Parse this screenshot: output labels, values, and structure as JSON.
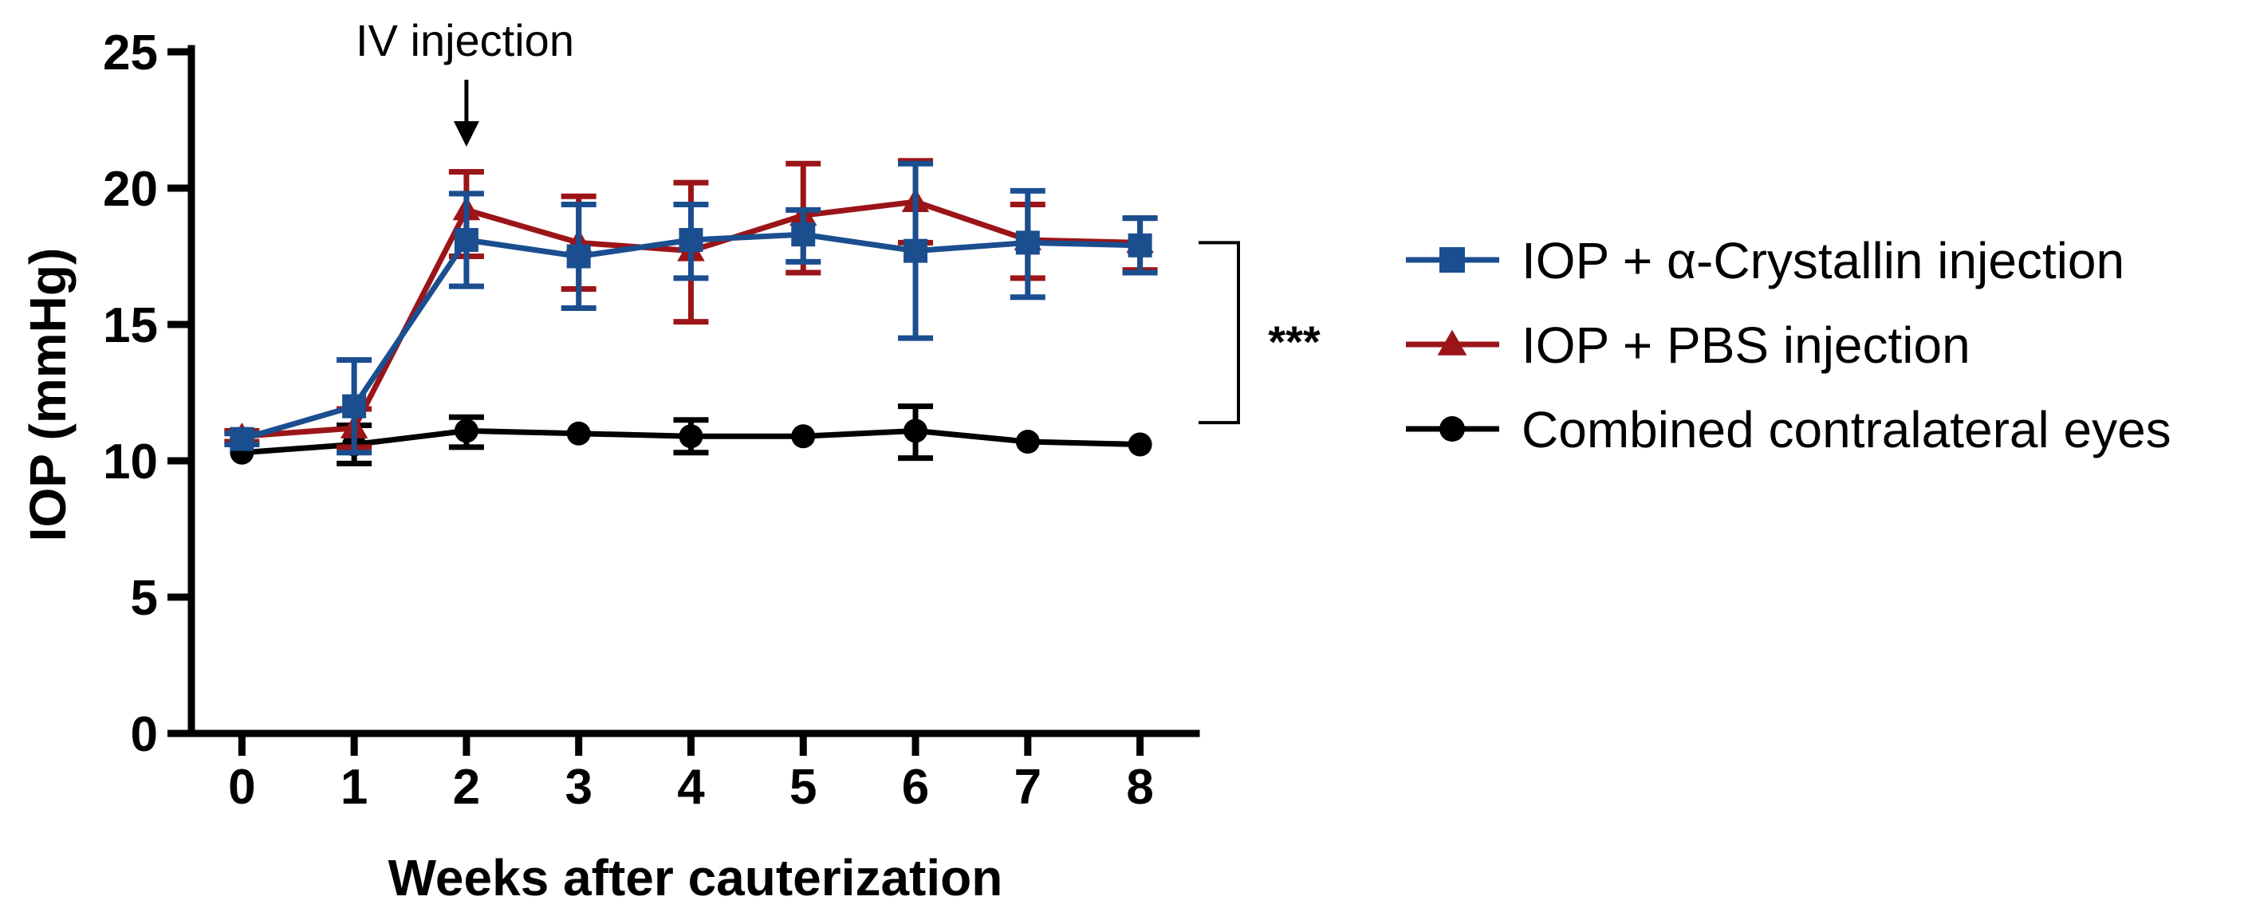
{
  "chart_data": {
    "type": "line",
    "title": "",
    "xlabel": "Weeks after cauterization",
    "ylabel": "IOP (mmHg)",
    "x": [
      0,
      1,
      2,
      3,
      4,
      5,
      6,
      7,
      8
    ],
    "x_ticks": [
      "0",
      "1",
      "2",
      "3",
      "4",
      "5",
      "6",
      "7",
      "8"
    ],
    "y_ticks": [
      "0",
      "5",
      "10",
      "15",
      "20",
      "25"
    ],
    "xlim": [
      -0.45,
      8.5
    ],
    "ylim": [
      0,
      25
    ],
    "grid": false,
    "legend_position": "right",
    "series": [
      {
        "name": "IOP + α-Crystallin injection",
        "color": "#1a4e8f",
        "marker": "square",
        "values": [
          10.8,
          12.0,
          18.1,
          17.5,
          18.1,
          18.3,
          17.7,
          18.0,
          17.9
        ],
        "err_low": [
          10.6,
          10.3,
          16.4,
          15.6,
          16.7,
          17.3,
          14.5,
          16.0,
          16.9
        ],
        "err_high": [
          11.0,
          13.7,
          19.8,
          19.4,
          19.4,
          19.2,
          20.9,
          19.9,
          18.9
        ]
      },
      {
        "name": "IOP + PBS injection",
        "color": "#9b1518",
        "marker": "triangle",
        "values": [
          10.9,
          11.2,
          19.2,
          18.0,
          17.7,
          19.0,
          19.5,
          18.1,
          18.0
        ],
        "err_low": [
          10.7,
          10.5,
          17.5,
          16.3,
          15.1,
          16.9,
          18.0,
          16.7,
          17.0
        ],
        "err_high": [
          11.1,
          11.9,
          20.6,
          19.7,
          20.2,
          20.9,
          21.0,
          19.4,
          18.9
        ]
      },
      {
        "name": "Combined contralateral eyes",
        "color": "#000000",
        "marker": "circle",
        "values": [
          10.3,
          10.6,
          11.1,
          11.0,
          10.9,
          10.9,
          11.1,
          10.7,
          10.6
        ],
        "err_low": [
          10.3,
          9.9,
          10.5,
          11.0,
          10.3,
          10.9,
          10.1,
          10.7,
          10.6
        ],
        "err_high": [
          10.3,
          11.3,
          11.6,
          11.0,
          11.5,
          10.9,
          12.0,
          10.7,
          10.6
        ]
      }
    ],
    "annotations": {
      "injection_label": "IV injection",
      "injection_x": 2,
      "significance": "***",
      "significance_range": [
        11.4,
        18.0
      ]
    }
  }
}
